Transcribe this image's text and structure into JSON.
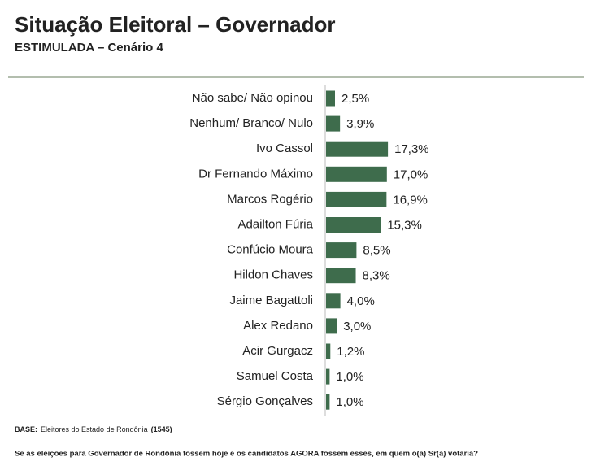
{
  "chart_data": {
    "type": "bar",
    "orientation": "horizontal",
    "title": "Situação Eleitoral – Governador",
    "subtitle": "ESTIMULADA – Cenário 4",
    "categories": [
      "Não sabe/ Não opinou",
      "Nenhum/ Branco/ Nulo",
      "Ivo Cassol",
      "Dr Fernando Máximo",
      "Marcos Rogério",
      "Adailton Fúria",
      "Confúcio Moura",
      "Hildon Chaves",
      "Jaime Bagattoli",
      "Alex Redano",
      "Acir Gurgacz",
      "Samuel Costa",
      "Sérgio Gonçalves"
    ],
    "values": [
      2.5,
      3.9,
      17.3,
      17.0,
      16.9,
      15.3,
      8.5,
      8.3,
      4.0,
      3.0,
      1.2,
      1.0,
      1.0
    ],
    "value_labels": [
      "2,5%",
      "3,9%",
      "17,3%",
      "17,0%",
      "16,9%",
      "15,3%",
      "8,5%",
      "8,3%",
      "4,0%",
      "3,0%",
      "1,2%",
      "1,0%",
      "1,0%"
    ],
    "color": "#3e6c4c",
    "base": {
      "label": "BASE:",
      "text": "Eleitores do Estado de Rondônia",
      "count": "(1545)"
    },
    "question": "Se as eleições para Governador de Rondônia fossem hoje e os candidatos AGORA fossem esses, em quem o(a) Sr(a) votaria?"
  }
}
